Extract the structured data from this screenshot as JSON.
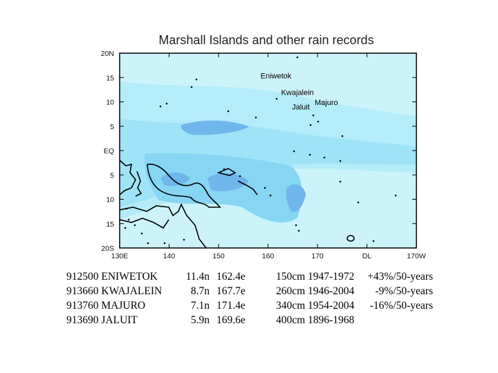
{
  "title": "Marshall Islands and other rain records",
  "colors": {
    "ocean_light": "#ccf3fa",
    "ocean_mid": "#9fe4f6",
    "ocean_deep": "#7fd2f2",
    "ocean_blue": "#6fb6ec",
    "coast": "#000000",
    "frame": "#000000"
  },
  "axes": {
    "lat_ticks": [
      "20N",
      "15",
      "10",
      "5",
      "EQ",
      "5",
      "10",
      "15",
      "20S"
    ],
    "lon_ticks": [
      "130E",
      "140",
      "150",
      "160",
      "170",
      "DL",
      "170W"
    ]
  },
  "places": [
    {
      "name": "Eniwetok",
      "lat": 11.4,
      "lon": 162.4
    },
    {
      "name": "Kwajalein",
      "lat": 8.7,
      "lon": 167.7
    },
    {
      "name": "Majuro",
      "lat": 7.1,
      "lon": 171.4
    },
    {
      "name": "Jaluit",
      "lat": 5.9,
      "lon": 169.6
    }
  ],
  "records": [
    {
      "id": "912500 ENIWETOK",
      "lat": "11.4n",
      "lon": "162.4e",
      "rain_period": "150cm 1947-1972",
      "trend": "+43%/50-years"
    },
    {
      "id": "913660 KWAJALEIN",
      "lat": "8.7n",
      "lon": "167.7e",
      "rain_period": "260cm 1946-2004",
      "trend": "-9%/50-years"
    },
    {
      "id": "913760 MAJURO",
      "lat": "7.1n",
      "lon": "171.4e",
      "rain_period": "340cm 1954-2004",
      "trend": "-16%/50-years"
    },
    {
      "id": "913690 JALUIT",
      "lat": "5.9n",
      "lon": "169.6e",
      "rain_period": "400cm 1896-1968",
      "trend": ""
    }
  ]
}
